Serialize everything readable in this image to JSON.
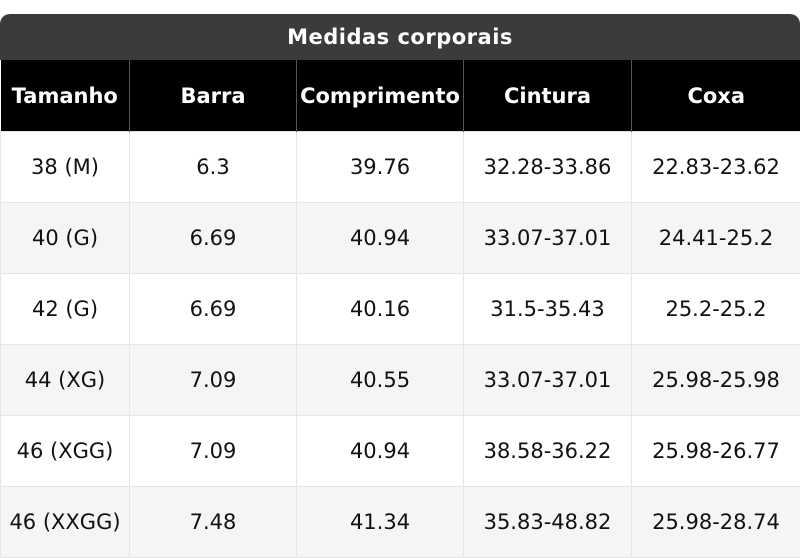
{
  "title": "Medidas corporais",
  "table": {
    "headers": [
      "Tamanho",
      "Barra",
      "Comprimento",
      "Cintura",
      "Coxa"
    ],
    "rows": [
      [
        "38 (M)",
        "6.3",
        "39.76",
        "32.28-33.86",
        "22.83-23.62"
      ],
      [
        "40 (G)",
        "6.69",
        "40.94",
        "33.07-37.01",
        "24.41-25.2"
      ],
      [
        "42 (G)",
        "6.69",
        "40.16",
        "31.5-35.43",
        "25.2-25.2"
      ],
      [
        "44 (XG)",
        "7.09",
        "40.55",
        "33.07-37.01",
        "25.98-25.98"
      ],
      [
        "46 (XGG)",
        "7.09",
        "40.94",
        "38.58-36.22",
        "25.98-26.77"
      ],
      [
        "46 (XXGG)",
        "7.48",
        "41.34",
        "35.83-48.82",
        "25.98-28.74"
      ]
    ]
  }
}
